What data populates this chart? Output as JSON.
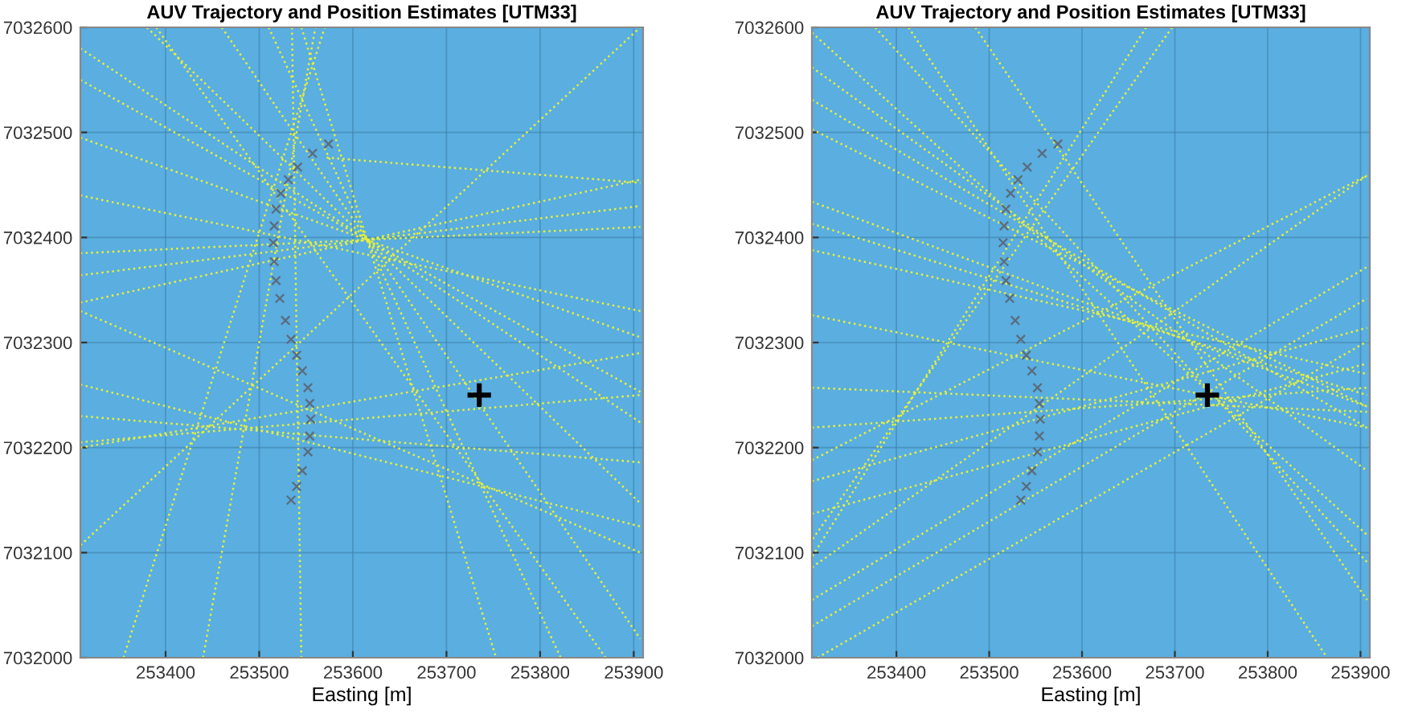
{
  "chart_data": [
    {
      "type": "line",
      "title": "AUV Trajectory and Position Estimates [UTM33]",
      "xlabel": "Easting [m]",
      "xlim": [
        253309,
        253910
      ],
      "ylim": [
        7032000,
        7032600
      ],
      "xticks": [
        253400,
        253500,
        253600,
        253700,
        253800,
        253900
      ],
      "yticks": [
        7032000,
        7032100,
        7032200,
        7032300,
        7032400,
        7032500,
        7032600
      ],
      "grid": true,
      "line_style": "dotted",
      "series": [
        {
          "color": "#e8f03a",
          "x": [
            253309,
            253907
          ],
          "values": [
            7032580,
            7032224
          ]
        },
        {
          "color": "#e8f03a",
          "x": [
            253309,
            253907
          ],
          "values": [
            7032550,
            7032253
          ]
        },
        {
          "color": "#e8f03a",
          "x": [
            253309,
            253907
          ],
          "values": [
            7032495,
            7032305
          ]
        },
        {
          "color": "#e8f03a",
          "x": [
            253380,
            253907
          ],
          "values": [
            7032600,
            7032147
          ]
        },
        {
          "color": "#e8f03a",
          "x": [
            253460,
            253907
          ],
          "values": [
            7032600,
            7032018
          ]
        },
        {
          "color": "#e8f03a",
          "x": [
            253510,
            253822
          ],
          "values": [
            7032600,
            7032000
          ]
        },
        {
          "color": "#e8f03a",
          "x": [
            253545,
            253753
          ],
          "values": [
            7032600,
            7032000
          ]
        },
        {
          "color": "#e8f03a",
          "x": [
            253309,
            253907
          ],
          "values": [
            7032338,
            7032455
          ]
        },
        {
          "color": "#e8f03a",
          "x": [
            253309,
            253907
          ],
          "values": [
            7032364,
            7032430
          ]
        },
        {
          "color": "#e8f03a",
          "x": [
            253309,
            253907
          ],
          "values": [
            7032385,
            7032410
          ]
        },
        {
          "color": "#e8f03a",
          "x": [
            253309,
            253907
          ],
          "values": [
            7032205,
            7032250
          ]
        },
        {
          "color": "#e8f03a",
          "x": [
            253309,
            253907
          ],
          "values": [
            7032230,
            7032186
          ]
        },
        {
          "color": "#e8f03a",
          "x": [
            253309,
            253907
          ],
          "values": [
            7032260,
            7032125
          ]
        },
        {
          "color": "#e8f03a",
          "x": [
            253309,
            253907
          ],
          "values": [
            7032107,
            7032600
          ]
        },
        {
          "color": "#e8f03a",
          "x": [
            253390,
            253870
          ],
          "values": [
            7032600,
            7032000
          ]
        },
        {
          "color": "#e8f03a",
          "x": [
            253535,
            253545
          ],
          "values": [
            7032600,
            7032000
          ]
        },
        {
          "color": "#e8f03a",
          "x": [
            253572,
            253907
          ],
          "values": [
            7032476,
            7032452
          ]
        },
        {
          "color": "#e8f03a",
          "x": [
            253355,
            253570
          ],
          "values": [
            7032000,
            7032600
          ]
        },
        {
          "color": "#e8f03a",
          "x": [
            253309,
            253907
          ],
          "values": [
            7032440,
            7032330
          ]
        },
        {
          "color": "#e8f03a",
          "x": [
            253309,
            253907
          ],
          "values": [
            7032200,
            7032290
          ]
        },
        {
          "color": "#e8f03a",
          "x": [
            253440,
            253560
          ],
          "values": [
            7032000,
            7032600
          ]
        },
        {
          "color": "#e8f03a",
          "x": [
            253309,
            253907
          ],
          "values": [
            7032330,
            7032100
          ]
        },
        {
          "type": "scatter",
          "marker": "cross",
          "color": "#5b6b7b",
          "x": [
            253574,
            253557,
            253541,
            253531,
            253523,
            253518,
            253516,
            253515,
            253516,
            253518,
            253522,
            253528,
            253534,
            253540,
            253546,
            253552,
            253554,
            253555,
            253554,
            253552,
            253546,
            253540,
            253534
          ],
          "values": [
            7032489,
            7032480,
            7032467,
            7032455,
            7032442,
            7032427,
            7032411,
            7032395,
            7032377,
            7032359,
            7032342,
            7032321,
            7032303,
            7032288,
            7032273,
            7032257,
            7032242,
            7032227,
            7032211,
            7032196,
            7032178,
            7032163,
            7032150
          ]
        },
        {
          "type": "scatter",
          "marker": "plus",
          "color": "#000000",
          "x": [
            253735
          ],
          "values": [
            7032250
          ]
        }
      ]
    },
    {
      "type": "line",
      "title": "AUV Trajectory and Position Estimates [UTM33]",
      "xlabel": "Easting [m]",
      "xlim": [
        253309,
        253910
      ],
      "ylim": [
        7032000,
        7032600
      ],
      "xticks": [
        253400,
        253500,
        253600,
        253700,
        253800,
        253900
      ],
      "yticks": [
        7032000,
        7032100,
        7032200,
        7032300,
        7032400,
        7032500,
        7032600
      ],
      "grid": true,
      "line_style": "dotted",
      "series": [
        {
          "color": "#e8f03a",
          "x": [
            253309,
            253907
          ],
          "values": [
            7032595,
            7032117
          ]
        },
        {
          "color": "#e8f03a",
          "x": [
            253309,
            253907
          ],
          "values": [
            7032562,
            7032178
          ]
        },
        {
          "color": "#e8f03a",
          "x": [
            253309,
            253907
          ],
          "values": [
            7032531,
            7032219
          ]
        },
        {
          "color": "#e8f03a",
          "x": [
            253309,
            253907
          ],
          "values": [
            7032503,
            7032239
          ]
        },
        {
          "color": "#e8f03a",
          "x": [
            253377,
            253907
          ],
          "values": [
            7032600,
            7032091
          ]
        },
        {
          "color": "#e8f03a",
          "x": [
            253413,
            253864
          ],
          "values": [
            7032600,
            7032000
          ]
        },
        {
          "color": "#e8f03a",
          "x": [
            253485,
            253907
          ],
          "values": [
            7032600,
            7032055
          ]
        },
        {
          "color": "#e8f03a",
          "x": [
            253309,
            253907
          ],
          "values": [
            7032434,
            7032239
          ]
        },
        {
          "color": "#e8f03a",
          "x": [
            253309,
            253907
          ],
          "values": [
            7032413,
            7032250
          ]
        },
        {
          "color": "#e8f03a",
          "x": [
            253309,
            253907
          ],
          "values": [
            7032388,
            7032270
          ]
        },
        {
          "color": "#e8f03a",
          "x": [
            253309,
            253907
          ],
          "values": [
            7032326,
            7032219
          ]
        },
        {
          "color": "#e8f03a",
          "x": [
            253309,
            253907
          ],
          "values": [
            7032257,
            7032234
          ]
        },
        {
          "color": "#e8f03a",
          "x": [
            253309,
            253907
          ],
          "values": [
            7032086,
            7032459
          ]
        },
        {
          "color": "#e8f03a",
          "x": [
            253309,
            253907
          ],
          "values": [
            7032055,
            7032372
          ]
        },
        {
          "color": "#e8f03a",
          "x": [
            253309,
            253907
          ],
          "values": [
            7032030,
            7032342
          ]
        },
        {
          "color": "#e8f03a",
          "x": [
            253315,
            253907
          ],
          "values": [
            7032000,
            7032301
          ]
        },
        {
          "color": "#e8f03a",
          "x": [
            253309,
            253907
          ],
          "values": [
            7032137,
            7032280
          ]
        },
        {
          "color": "#e8f03a",
          "x": [
            253309,
            253907
          ],
          "values": [
            7032168,
            7032314
          ]
        },
        {
          "color": "#e8f03a",
          "x": [
            253669,
            253309
          ],
          "values": [
            7032600,
            7032096
          ]
        },
        {
          "color": "#e8f03a",
          "x": [
            253697,
            253309
          ],
          "values": [
            7032600,
            7032112
          ]
        },
        {
          "color": "#e8f03a",
          "x": [
            253309,
            253907
          ],
          "values": [
            7032188,
            7032459
          ]
        },
        {
          "color": "#e8f03a",
          "x": [
            253309,
            253907
          ],
          "values": [
            7032219,
            7032257
          ]
        },
        {
          "type": "scatter",
          "marker": "cross",
          "color": "#5b6b7b",
          "x": [
            253574,
            253557,
            253541,
            253531,
            253523,
            253518,
            253516,
            253515,
            253516,
            253518,
            253522,
            253528,
            253534,
            253540,
            253546,
            253552,
            253554,
            253555,
            253554,
            253552,
            253546,
            253540,
            253534
          ],
          "values": [
            7032489,
            7032480,
            7032467,
            7032455,
            7032442,
            7032427,
            7032411,
            7032395,
            7032377,
            7032359,
            7032342,
            7032321,
            7032303,
            7032288,
            7032273,
            7032257,
            7032242,
            7032227,
            7032211,
            7032196,
            7032178,
            7032163,
            7032150
          ]
        },
        {
          "type": "scatter",
          "marker": "plus",
          "color": "#000000",
          "x": [
            253735
          ],
          "values": [
            7032250
          ]
        }
      ]
    }
  ]
}
